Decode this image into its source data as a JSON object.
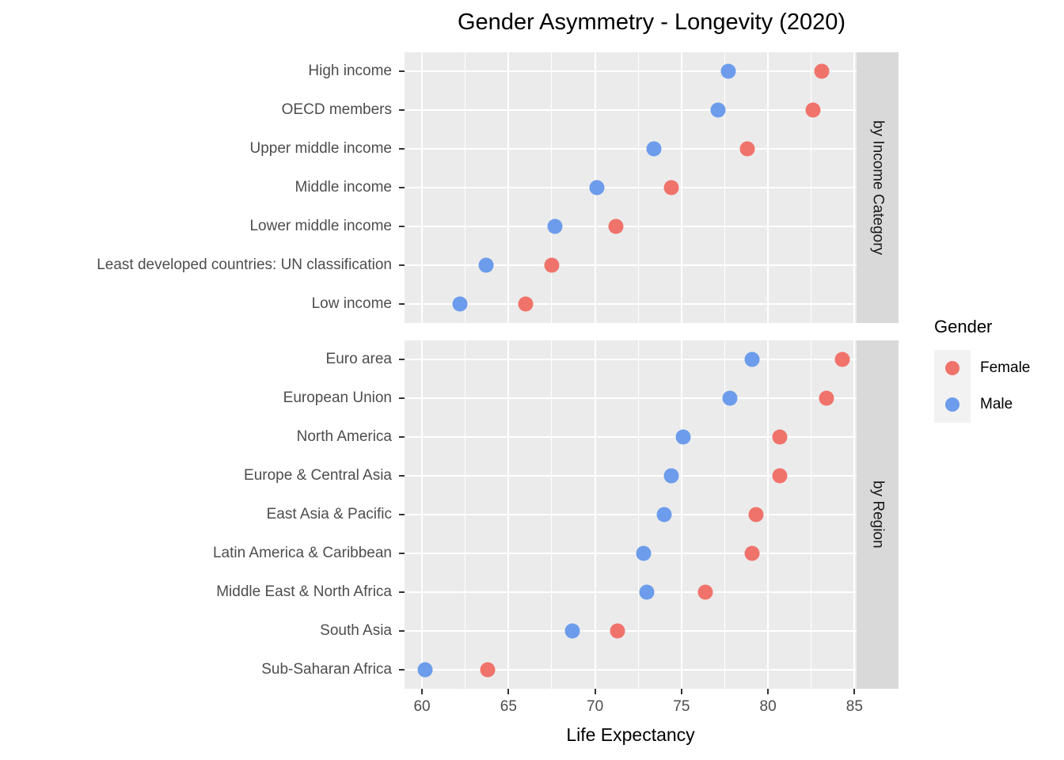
{
  "title": "Gender Asymmetry - Longevity (2020)",
  "x_axis_title": "Life Expectancy",
  "colors": {
    "female": "#F0736B",
    "male": "#6C9CEB",
    "panel_bg": "#EBEBEB",
    "strip_bg": "#D9D9D9",
    "grid": "#FFFFFF",
    "axis_text": "#4D4D4D"
  },
  "legend": {
    "title": "Gender",
    "entries": [
      {
        "label": "Female",
        "color": "#F0736B"
      },
      {
        "label": "Male",
        "color": "#6C9CEB"
      }
    ]
  },
  "chart_data": {
    "type": "scatter",
    "title": "Gender Asymmetry - Longevity (2020)",
    "xlabel": "Life Expectancy",
    "ylabel": "",
    "x_ticks": [
      60,
      65,
      70,
      75,
      80,
      85
    ],
    "x_minor_ticks": [
      62.5,
      67.5,
      72.5,
      77.5,
      82.5
    ],
    "x_domain": [
      58.99,
      85.12
    ],
    "grid": "on",
    "legend_position": "right",
    "facets": [
      {
        "strip": "by Income Category",
        "categories": [
          "High income",
          "OECD members",
          "Upper middle income",
          "Middle income",
          "Lower middle income",
          "Least developed countries: UN classification",
          "Low income"
        ],
        "series": [
          {
            "name": "Female",
            "values": [
              83.1,
              82.6,
              78.8,
              74.4,
              71.2,
              67.5,
              66.0
            ]
          },
          {
            "name": "Male",
            "values": [
              77.7,
              77.1,
              73.4,
              70.1,
              67.7,
              63.7,
              62.2
            ]
          }
        ]
      },
      {
        "strip": "by Region",
        "categories": [
          "Euro area",
          "European Union",
          "North America",
          "Europe & Central Asia",
          "East Asia & Pacific",
          "Latin America & Caribbean",
          "Middle East & North Africa",
          "South Asia",
          "Sub-Saharan Africa"
        ],
        "series": [
          {
            "name": "Female",
            "values": [
              84.3,
              83.4,
              80.7,
              80.7,
              79.3,
              79.1,
              76.4,
              71.3,
              63.8
            ]
          },
          {
            "name": "Male",
            "values": [
              79.1,
              77.8,
              75.1,
              74.4,
              74.0,
              72.8,
              73.0,
              68.7,
              60.2
            ]
          }
        ]
      }
    ]
  }
}
